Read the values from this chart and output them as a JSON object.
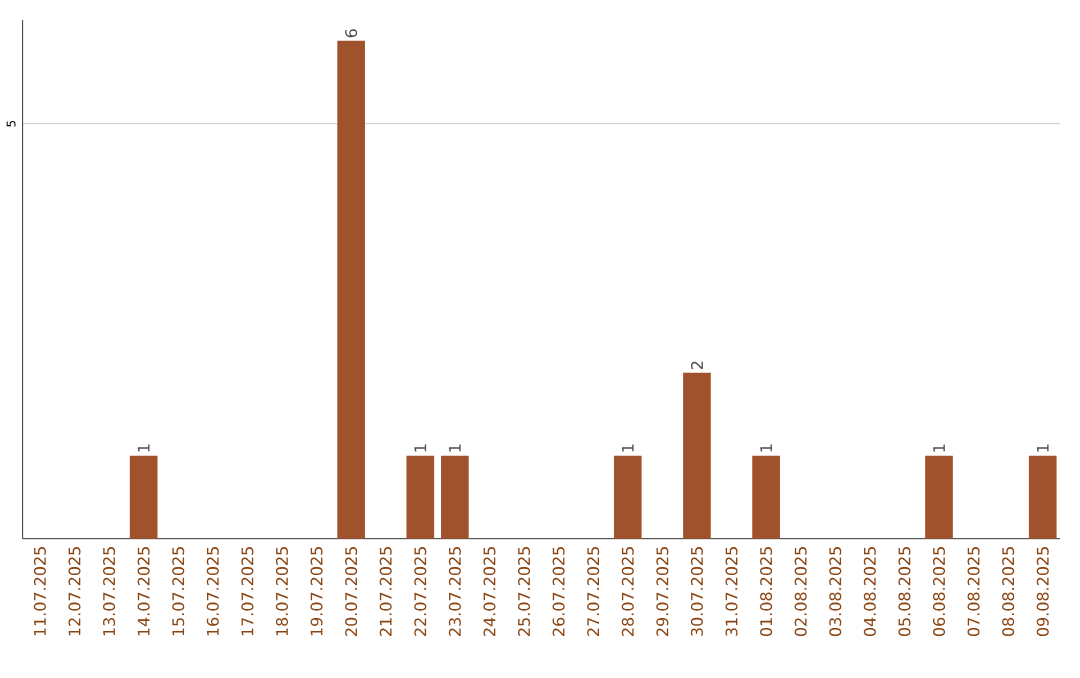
{
  "chart_data": {
    "type": "bar",
    "categories": [
      "11.07.2025",
      "12.07.2025",
      "13.07.2025",
      "14.07.2025",
      "15.07.2025",
      "16.07.2025",
      "17.07.2025",
      "18.07.2025",
      "19.07.2025",
      "20.07.2025",
      "21.07.2025",
      "22.07.2025",
      "23.07.2025",
      "24.07.2025",
      "25.07.2025",
      "26.07.2025",
      "27.07.2025",
      "28.07.2025",
      "29.07.2025",
      "30.07.2025",
      "31.07.2025",
      "01.08.2025",
      "02.08.2025",
      "03.08.2025",
      "04.08.2025",
      "05.08.2025",
      "06.08.2025",
      "07.08.2025",
      "08.08.2025",
      "09.08.2025"
    ],
    "values": [
      0,
      0,
      0,
      1,
      0,
      0,
      0,
      0,
      0,
      6,
      0,
      1,
      1,
      0,
      0,
      0,
      0,
      1,
      0,
      2,
      0,
      1,
      0,
      0,
      0,
      0,
      1,
      0,
      0,
      1
    ],
    "value_labels": [
      null,
      null,
      null,
      "1",
      null,
      null,
      null,
      null,
      null,
      "6",
      null,
      "1",
      "1",
      null,
      null,
      null,
      null,
      "1",
      null,
      "2",
      null,
      "1",
      null,
      null,
      null,
      null,
      "1",
      null,
      null,
      "1"
    ],
    "color": "#a0522d",
    "ylim": [
      0,
      6.25
    ],
    "yticks": [
      5
    ],
    "grid": "y"
  }
}
